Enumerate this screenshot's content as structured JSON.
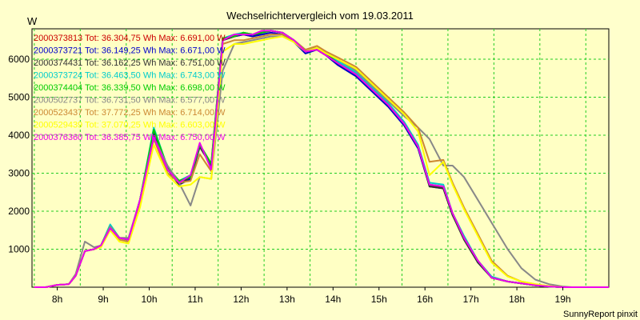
{
  "chart_data": {
    "type": "line",
    "title": "Wechselrichtervergleich vom 19.03.2011",
    "ylabel": "W",
    "xlabel": "",
    "footer": "SunnyReport pinxit",
    "x_range": [
      7.45,
      20.0
    ],
    "ylim": [
      0,
      6800
    ],
    "y_ticks": [
      1000,
      2000,
      3000,
      4000,
      5000,
      6000
    ],
    "x_ticks": [
      {
        "label": "8h",
        "value": 8
      },
      {
        "label": "9h",
        "value": 9
      },
      {
        "label": "10h",
        "value": 10
      },
      {
        "label": "11h",
        "value": 11
      },
      {
        "label": "12h",
        "value": 12
      },
      {
        "label": "13h",
        "value": 13
      },
      {
        "label": "14h",
        "value": 14
      },
      {
        "label": "15h",
        "value": 15
      },
      {
        "label": "16h",
        "value": 16
      },
      {
        "label": "17h",
        "value": 17
      },
      {
        "label": "18h",
        "value": 18
      },
      {
        "label": "19h",
        "value": 19
      }
    ],
    "grid": true,
    "legend_position": "top-left",
    "x": [
      7.5,
      7.75,
      8.0,
      8.25,
      8.4,
      8.6,
      8.8,
      8.95,
      9.15,
      9.35,
      9.55,
      9.8,
      10.1,
      10.4,
      10.65,
      10.9,
      11.1,
      11.35,
      11.6,
      11.85,
      12.05,
      12.25,
      12.45,
      12.65,
      12.9,
      13.15,
      13.4,
      13.65,
      13.85,
      14.1,
      14.5,
      14.85,
      15.2,
      15.55,
      15.85,
      16.1,
      16.4,
      16.6,
      16.85,
      17.15,
      17.45,
      17.8,
      18.1,
      18.4,
      18.7,
      19.0,
      19.2,
      19.6,
      20.0
    ],
    "series": [
      {
        "name": "2000373813",
        "color": "#cc0000",
        "legend": "2000373813 Tot: 36.304,75 Wh Max: 6.691,00 W",
        "values": [
          0,
          0,
          60,
          80,
          300,
          950,
          1000,
          1100,
          1600,
          1300,
          1250,
          2300,
          4050,
          3100,
          2800,
          2900,
          3700,
          3200,
          6550,
          6600,
          6650,
          6600,
          6700,
          6750,
          6700,
          6500,
          6200,
          6250,
          6100,
          5900,
          5600,
          5200,
          4800,
          4300,
          3700,
          2700,
          2600,
          1900,
          1300,
          700,
          250,
          150,
          100,
          50,
          20,
          0,
          0,
          0,
          0
        ]
      },
      {
        "name": "2000373721",
        "color": "#0000cc",
        "legend": "2000373721 Tot: 36.149,25 Wh Max: 6.671,00 W",
        "values": [
          0,
          0,
          60,
          80,
          300,
          950,
          1000,
          1100,
          1600,
          1300,
          1250,
          2300,
          4100,
          3100,
          2700,
          2850,
          3700,
          3200,
          6500,
          6600,
          6650,
          6600,
          6650,
          6700,
          6650,
          6450,
          6150,
          6250,
          6100,
          5850,
          5550,
          5150,
          4750,
          4250,
          3650,
          2650,
          2600,
          1900,
          1300,
          650,
          250,
          150,
          100,
          50,
          20,
          0,
          0,
          0,
          0
        ]
      },
      {
        "name": "2000374431",
        "color": "#333333",
        "legend": "2000374431 Tot: 36.162,25 Wh Max: 6.751,00 W",
        "values": [
          0,
          0,
          60,
          80,
          300,
          950,
          1000,
          1100,
          1600,
          1300,
          1250,
          2300,
          4000,
          3100,
          2700,
          2900,
          3700,
          3200,
          6500,
          6600,
          6700,
          6650,
          6700,
          6750,
          6700,
          6500,
          6200,
          6250,
          6100,
          5900,
          5600,
          5200,
          4800,
          4300,
          3700,
          2650,
          2600,
          1900,
          1250,
          650,
          250,
          150,
          100,
          50,
          20,
          0,
          0,
          0,
          0
        ]
      },
      {
        "name": "2000373724",
        "color": "#00cccc",
        "legend": "2000373724 Tot: 36.463,50 Wh Max: 6.743,00 W",
        "values": [
          0,
          0,
          60,
          80,
          300,
          950,
          1000,
          1100,
          1650,
          1300,
          1250,
          2300,
          4200,
          3150,
          2800,
          2950,
          3750,
          3250,
          6550,
          6650,
          6700,
          6650,
          6700,
          6750,
          6700,
          6500,
          6250,
          6300,
          6150,
          5950,
          5650,
          5250,
          4850,
          4350,
          3750,
          2750,
          2700,
          1950,
          1350,
          700,
          280,
          150,
          100,
          50,
          20,
          0,
          0,
          0,
          0
        ]
      },
      {
        "name": "2000374404",
        "color": "#00cc00",
        "legend": "2000374404 Tot: 36.339,50 Wh Max: 6.698,00 W",
        "values": [
          0,
          0,
          60,
          80,
          300,
          950,
          1000,
          1100,
          1600,
          1300,
          1250,
          2300,
          4150,
          3150,
          2800,
          2900,
          3750,
          3250,
          6550,
          6600,
          6700,
          6650,
          6700,
          6750,
          6700,
          6500,
          6200,
          6250,
          6150,
          5900,
          5600,
          5200,
          4800,
          4300,
          3700,
          2700,
          2650,
          1950,
          1300,
          700,
          250,
          150,
          100,
          50,
          20,
          0,
          0,
          0,
          0
        ]
      },
      {
        "name": "2000502737",
        "color": "#888888",
        "legend": "2000502737 Tot: 36.731,50 Wh Max: 6.577,00 W",
        "values": [
          0,
          0,
          60,
          80,
          350,
          1200,
          1050,
          1100,
          1600,
          1300,
          1300,
          2300,
          3950,
          3200,
          2750,
          2150,
          2900,
          2850,
          5700,
          6400,
          6450,
          6500,
          6550,
          6600,
          6600,
          6450,
          6250,
          6300,
          6150,
          6000,
          5700,
          5300,
          4900,
          4500,
          4200,
          3900,
          3200,
          3200,
          2900,
          2300,
          1700,
          1000,
          500,
          200,
          80,
          20,
          0,
          0,
          0
        ]
      },
      {
        "name": "2000523437",
        "color": "#cc8833",
        "legend": "2000523437 Tot: 37.772,25 Wh Max: 6.714,00 W",
        "values": [
          0,
          0,
          60,
          80,
          300,
          950,
          1000,
          1100,
          1550,
          1250,
          1200,
          2200,
          3900,
          3000,
          2750,
          2800,
          3500,
          3050,
          6400,
          6500,
          6500,
          6550,
          6600,
          6650,
          6650,
          6500,
          6250,
          6350,
          6200,
          6050,
          5800,
          5400,
          5000,
          4600,
          4200,
          3300,
          3350,
          2750,
          2100,
          1400,
          700,
          300,
          150,
          80,
          30,
          0,
          0,
          0,
          0
        ]
      },
      {
        "name": "2000529439",
        "color": "#ffff00",
        "legend": "2000529439 Tot: 37.070,25 Wh Max: 6.603,00 W",
        "values": [
          0,
          0,
          60,
          80,
          300,
          950,
          1000,
          1050,
          1500,
          1200,
          1150,
          2100,
          3750,
          2950,
          2650,
          2700,
          2900,
          2850,
          6200,
          6400,
          6400,
          6450,
          6500,
          6550,
          6600,
          6450,
          6200,
          6300,
          6150,
          6000,
          5750,
          5350,
          4950,
          4550,
          4100,
          2950,
          3300,
          2700,
          2050,
          1350,
          650,
          280,
          150,
          80,
          30,
          0,
          0,
          0,
          0
        ]
      },
      {
        "name": "2000376360",
        "color": "#ee00ee",
        "legend": "2000376360 Tot: 36.385,75 Wh Max: 6.750,00 W",
        "values": [
          0,
          0,
          60,
          80,
          300,
          950,
          1000,
          1100,
          1550,
          1300,
          1250,
          2300,
          3950,
          3100,
          2750,
          2950,
          3800,
          3100,
          6500,
          6650,
          6650,
          6650,
          6750,
          6750,
          6700,
          6500,
          6200,
          6250,
          6100,
          5900,
          5600,
          5200,
          4800,
          4300,
          3700,
          2700,
          2650,
          1950,
          1300,
          700,
          250,
          150,
          100,
          50,
          20,
          0,
          0,
          0,
          0
        ]
      }
    ]
  }
}
